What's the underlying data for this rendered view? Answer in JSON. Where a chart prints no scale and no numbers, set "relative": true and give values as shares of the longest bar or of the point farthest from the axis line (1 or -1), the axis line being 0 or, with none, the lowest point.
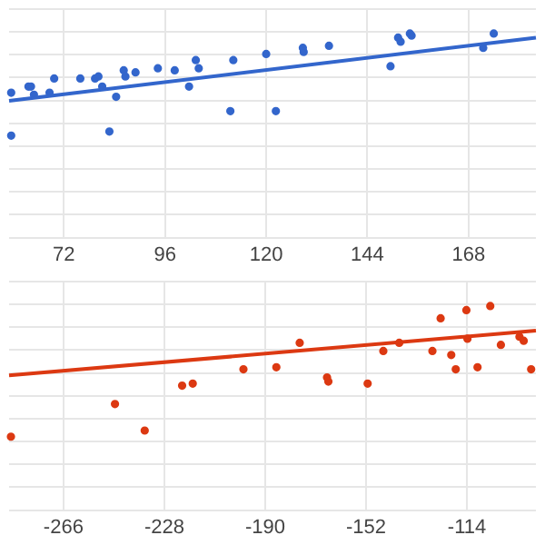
{
  "chart_data": [
    {
      "type": "scatter",
      "relative": true,
      "grid": true,
      "marker": "circle",
      "xlim": [
        59,
        184
      ],
      "xticks": [
        72,
        96,
        120,
        144,
        168
      ],
      "series": [
        {
          "color": "#3366cc",
          "x": [
            59.5,
            59.5,
            63.6,
            64.2,
            64.9,
            68.6,
            69.7,
            75.9,
            79.4,
            80.2,
            81.1,
            82.8,
            84.4,
            86.2,
            86.6,
            89.0,
            94.3,
            98.3,
            101.7,
            103.3,
            104.0,
            111.5,
            112.2,
            120.0,
            122.3,
            128.7,
            128.9,
            134.9,
            149.5,
            151.3,
            151.9,
            154.1,
            154.5,
            171.5,
            174.0
          ],
          "values": [
            0.71,
            0.5,
            0.74,
            0.74,
            0.7,
            0.71,
            0.78,
            0.78,
            0.78,
            0.79,
            0.74,
            0.52,
            0.69,
            0.82,
            0.79,
            0.81,
            0.83,
            0.82,
            0.74,
            0.87,
            0.83,
            0.62,
            0.87,
            0.9,
            0.62,
            0.93,
            0.91,
            0.94,
            0.84,
            0.98,
            0.96,
            1,
            0.99,
            0.93,
            1
          ]
        },
        {
          "type": "line",
          "marker": "none",
          "color": "#3366cc",
          "x": [
            59,
            184
          ],
          "values": [
            0.67,
            0.98
          ]
        }
      ]
    },
    {
      "type": "scatter",
      "relative": true,
      "grid": true,
      "marker": "circle",
      "xlim": [
        -286.5,
        -88
      ],
      "xticks": [
        -266,
        -228,
        -190,
        -152,
        -114
      ],
      "series": [
        {
          "color": "#dc3912",
          "x": [
            -285.8,
            -246.6,
            -235.4,
            -221.3,
            -217.3,
            -198.2,
            -185.8,
            -177.0,
            -166.7,
            -166.2,
            -151.4,
            -145.5,
            -139.5,
            -127.0,
            -123.9,
            -119.9,
            -118.2,
            -114.2,
            -113.8,
            -110.0,
            -105.2,
            -101.2,
            -94.2,
            -92.6,
            -89.8
          ],
          "values": [
            0.36,
            0.52,
            0.39,
            0.61,
            0.62,
            0.69,
            0.7,
            0.82,
            0.65,
            0.63,
            0.62,
            0.78,
            0.82,
            0.78,
            0.94,
            0.76,
            0.69,
            0.98,
            0.84,
            0.7,
            1,
            0.81,
            0.85,
            0.83,
            0.69
          ]
        },
        {
          "type": "line",
          "marker": "none",
          "color": "#dc3912",
          "x": [
            -286.5,
            -88
          ],
          "values": [
            0.66,
            0.88
          ]
        }
      ]
    }
  ]
}
